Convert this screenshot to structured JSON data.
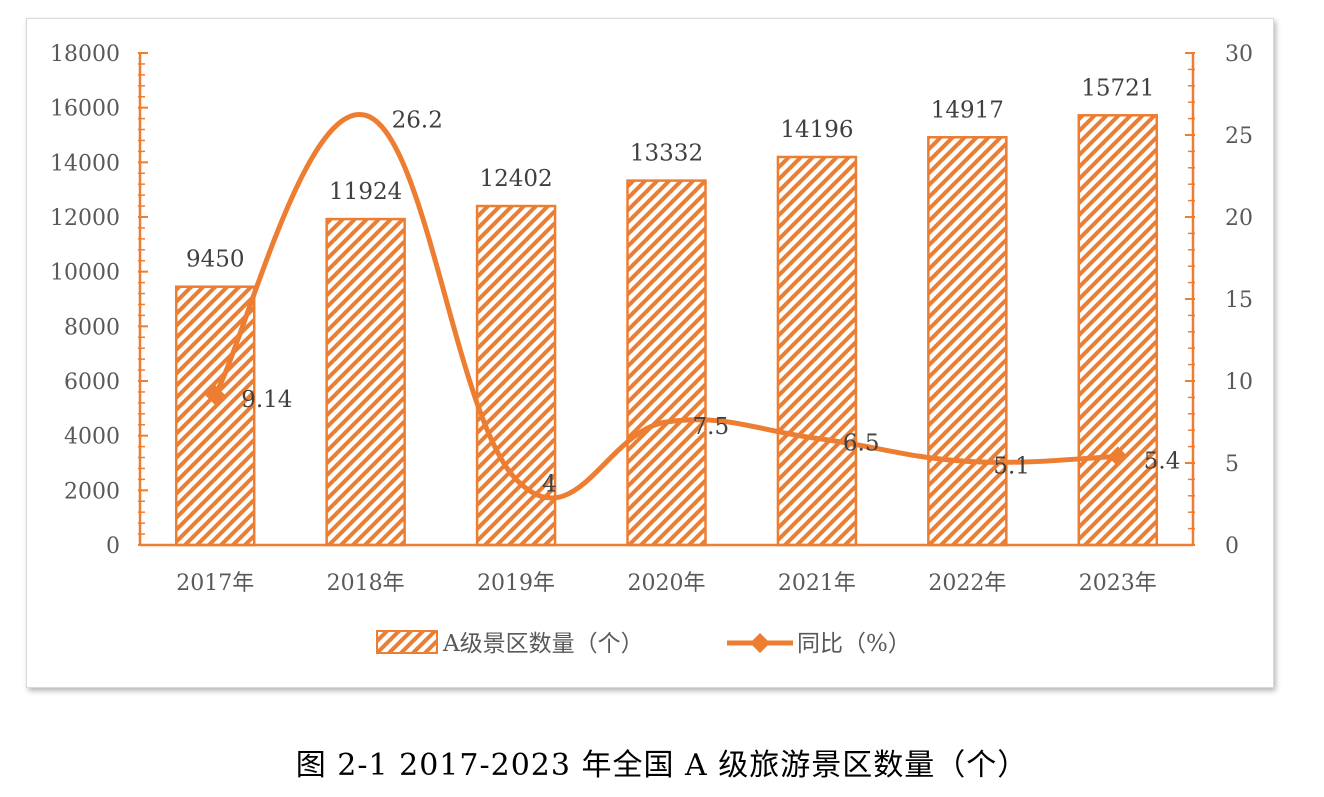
{
  "colors": {
    "accent": "#ED7D31",
    "text": "#595959",
    "label": "#404040"
  },
  "caption": "图  2-1 2017-2023 年全国 A 级旅游景区数量（个）",
  "chart_data": {
    "type": "bar",
    "categories": [
      "2017年",
      "2018年",
      "2019年",
      "2020年",
      "2021年",
      "2022年",
      "2023年"
    ],
    "series": [
      {
        "name": "A级景区数量（个）",
        "type": "bar",
        "axis": "left",
        "values": [
          9450,
          11924,
          12402,
          13332,
          14196,
          14917,
          15721
        ],
        "labels": [
          "9450",
          "11924",
          "12402",
          "13332",
          "14196",
          "14917",
          "15721"
        ]
      },
      {
        "name": "同比（%）",
        "type": "line",
        "axis": "right",
        "smooth": true,
        "marker": "diamond",
        "values": [
          9.14,
          26.2,
          4,
          7.5,
          6.5,
          5.1,
          5.4
        ],
        "labels": [
          "9.14",
          "26.2",
          "4",
          "7.5",
          "6.5",
          "5.1",
          "5.4"
        ]
      }
    ],
    "y_left": {
      "min": 0,
      "max": 18000,
      "step": 2000,
      "ticks": [
        "0",
        "2000",
        "4000",
        "6000",
        "8000",
        "10000",
        "12000",
        "14000",
        "16000",
        "18000"
      ]
    },
    "y_right": {
      "min": 0,
      "max": 30,
      "step": 5,
      "ticks": [
        "0",
        "5",
        "10",
        "15",
        "20",
        "25",
        "30"
      ]
    },
    "legend_position": "bottom",
    "grid": false
  }
}
